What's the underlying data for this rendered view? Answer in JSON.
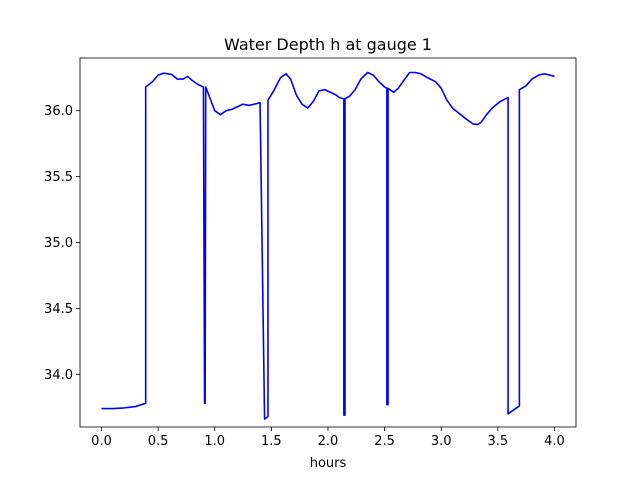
{
  "chart_data": {
    "type": "line",
    "title": "Water Depth h at gauge 1",
    "xlabel": "hours",
    "ylabel": "",
    "xlim": [
      -0.19,
      4.19
    ],
    "ylim": [
      33.6,
      36.4
    ],
    "xticks": [
      0.0,
      0.5,
      1.0,
      1.5,
      2.0,
      2.5,
      3.0,
      3.5,
      4.0
    ],
    "xtick_labels": [
      "0.0",
      "0.5",
      "1.0",
      "1.5",
      "2.0",
      "2.5",
      "3.0",
      "3.5",
      "4.0"
    ],
    "yticks": [
      34.0,
      34.5,
      35.0,
      35.5,
      36.0
    ],
    "ytick_labels": [
      "34.0",
      "34.5",
      "35.0",
      "35.5",
      "36.0"
    ],
    "grid": false,
    "legend": null,
    "series": [
      {
        "color": "#0000ff",
        "x": [
          0.0,
          0.1,
          0.2,
          0.3,
          0.39,
          0.39,
          0.45,
          0.5,
          0.55,
          0.62,
          0.67,
          0.72,
          0.76,
          0.8,
          0.85,
          0.9,
          0.91,
          0.915,
          0.92,
          0.96,
          1.0,
          1.05,
          1.1,
          1.15,
          1.2,
          1.25,
          1.3,
          1.35,
          1.4,
          1.44,
          1.44,
          1.47,
          1.47,
          1.52,
          1.58,
          1.63,
          1.67,
          1.72,
          1.77,
          1.82,
          1.87,
          1.92,
          1.97,
          2.02,
          2.07,
          2.1,
          2.14,
          2.14,
          2.15,
          2.15,
          2.19,
          2.24,
          2.29,
          2.35,
          2.4,
          2.45,
          2.5,
          2.52,
          2.52,
          2.53,
          2.53,
          2.58,
          2.62,
          2.67,
          2.72,
          2.77,
          2.82,
          2.88,
          2.95,
          3.0,
          3.05,
          3.1,
          3.2,
          3.28,
          3.32,
          3.35,
          3.4,
          3.45,
          3.52,
          3.59,
          3.59,
          3.69,
          3.69,
          3.75,
          3.8,
          3.86,
          3.91,
          3.96,
          4.0
        ],
        "y": [
          33.74,
          33.74,
          33.745,
          33.755,
          33.78,
          36.18,
          36.22,
          36.27,
          36.285,
          36.275,
          36.24,
          36.24,
          36.26,
          36.23,
          36.2,
          36.18,
          33.78,
          33.78,
          36.18,
          36.09,
          36.0,
          35.97,
          36.0,
          36.01,
          36.03,
          36.05,
          36.04,
          36.05,
          36.06,
          33.66,
          33.66,
          33.68,
          36.08,
          36.15,
          36.25,
          36.28,
          36.24,
          36.12,
          36.05,
          36.02,
          36.07,
          36.15,
          36.16,
          36.14,
          36.12,
          36.1,
          36.09,
          33.69,
          33.69,
          36.09,
          36.11,
          36.16,
          36.24,
          36.29,
          36.27,
          36.22,
          36.18,
          36.17,
          33.77,
          33.77,
          36.17,
          36.14,
          36.17,
          36.23,
          36.29,
          36.29,
          36.28,
          36.25,
          36.22,
          36.17,
          36.08,
          36.02,
          35.95,
          35.9,
          35.895,
          35.91,
          35.97,
          36.02,
          36.07,
          36.1,
          33.7,
          33.76,
          36.16,
          36.19,
          36.24,
          36.27,
          36.28,
          36.27,
          36.26
        ]
      }
    ]
  }
}
